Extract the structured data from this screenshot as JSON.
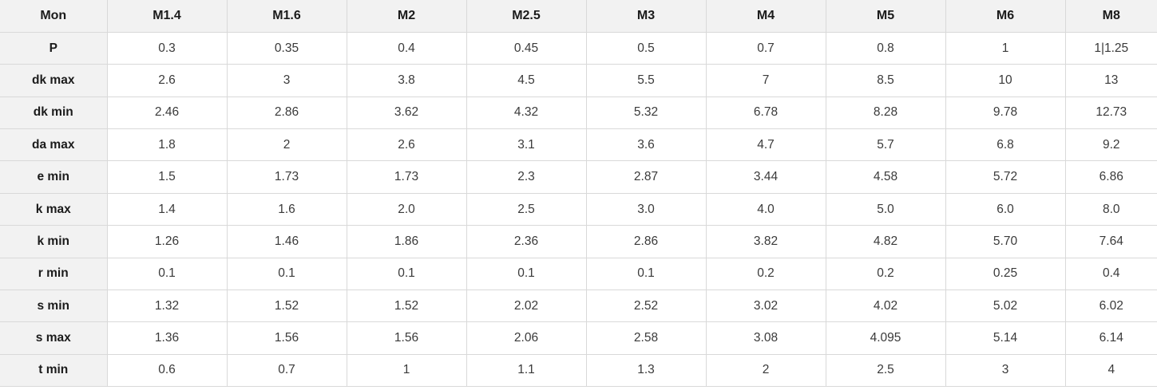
{
  "chart_data": {
    "type": "table",
    "header": [
      "Mon",
      "M1.4",
      "M1.6",
      "M2",
      "M2.5",
      "M3",
      "M4",
      "M5",
      "M6",
      "M8"
    ],
    "rows": [
      {
        "label": "P",
        "values": [
          "0.3",
          "0.35",
          "0.4",
          "0.45",
          "0.5",
          "0.7",
          "0.8",
          "1",
          "1|1.25"
        ]
      },
      {
        "label": "dk max",
        "values": [
          "2.6",
          "3",
          "3.8",
          "4.5",
          "5.5",
          "7",
          "8.5",
          "10",
          "13"
        ]
      },
      {
        "label": "dk min",
        "values": [
          "2.46",
          "2.86",
          "3.62",
          "4.32",
          "5.32",
          "6.78",
          "8.28",
          "9.78",
          "12.73"
        ]
      },
      {
        "label": "da max",
        "values": [
          "1.8",
          "2",
          "2.6",
          "3.1",
          "3.6",
          "4.7",
          "5.7",
          "6.8",
          "9.2"
        ]
      },
      {
        "label": "e min",
        "values": [
          "1.5",
          "1.73",
          "1.73",
          "2.3",
          "2.87",
          "3.44",
          "4.58",
          "5.72",
          "6.86"
        ]
      },
      {
        "label": "k max",
        "values": [
          "1.4",
          "1.6",
          "2.0",
          "2.5",
          "3.0",
          "4.0",
          "5.0",
          "6.0",
          "8.0"
        ]
      },
      {
        "label": "k min",
        "values": [
          "1.26",
          "1.46",
          "1.86",
          "2.36",
          "2.86",
          "3.82",
          "4.82",
          "5.70",
          "7.64"
        ]
      },
      {
        "label": "r min",
        "values": [
          "0.1",
          "0.1",
          "0.1",
          "0.1",
          "0.1",
          "0.2",
          "0.2",
          "0.25",
          "0.4"
        ]
      },
      {
        "label": "s min",
        "values": [
          "1.32",
          "1.52",
          "1.52",
          "2.02",
          "2.52",
          "3.02",
          "4.02",
          "5.02",
          "6.02"
        ]
      },
      {
        "label": "s max",
        "values": [
          "1.36",
          "1.56",
          "1.56",
          "2.06",
          "2.58",
          "3.08",
          "4.095",
          "5.14",
          "6.14"
        ]
      },
      {
        "label": "t min",
        "values": [
          "0.6",
          "0.7",
          "1",
          "1.1",
          "1.3",
          "2",
          "2.5",
          "3",
          "4"
        ]
      }
    ],
    "layout": {
      "grid": true,
      "header_background": "#f2f2f2",
      "label_column_background": "#f2f2f2",
      "cell_background": "#ffffff",
      "border_color": "#d9d9d9",
      "header_text_color": "#1b1b1b",
      "value_text_color": "#3a3a3a"
    }
  }
}
